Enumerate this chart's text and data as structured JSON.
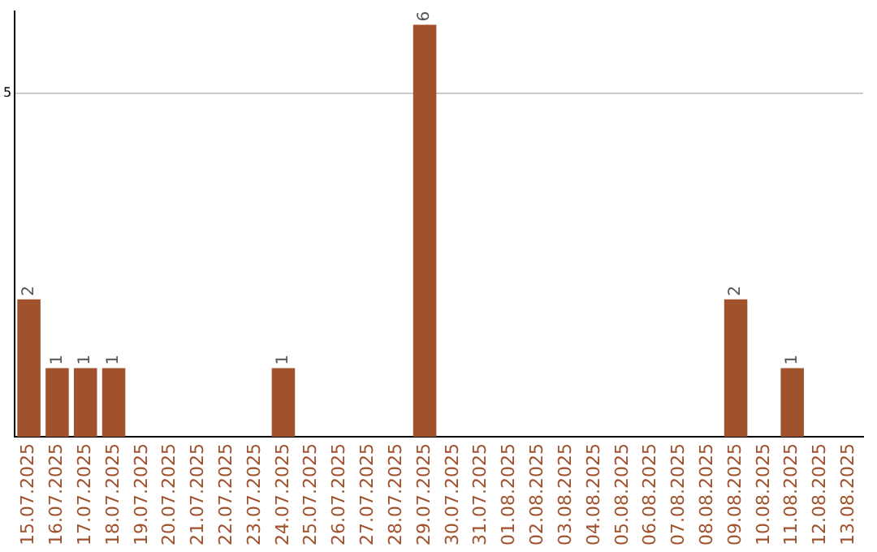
{
  "chart_data": {
    "type": "bar",
    "categories": [
      "15.07.2025",
      "16.07.2025",
      "17.07.2025",
      "18.07.2025",
      "19.07.2025",
      "20.07.2025",
      "21.07.2025",
      "22.07.2025",
      "23.07.2025",
      "24.07.2025",
      "25.07.2025",
      "26.07.2025",
      "27.07.2025",
      "28.07.2025",
      "29.07.2025",
      "30.07.2025",
      "31.07.2025",
      "01.08.2025",
      "02.08.2025",
      "03.08.2025",
      "04.08.2025",
      "05.08.2025",
      "06.08.2025",
      "07.08.2025",
      "08.08.2025",
      "09.08.2025",
      "10.08.2025",
      "11.08.2025",
      "12.08.2025",
      "13.08.2025"
    ],
    "values": [
      2,
      1,
      1,
      1,
      0,
      0,
      0,
      0,
      0,
      1,
      0,
      0,
      0,
      0,
      6,
      0,
      0,
      0,
      0,
      0,
      0,
      0,
      0,
      0,
      0,
      2,
      0,
      1,
      0,
      0
    ],
    "value_labels": [
      "2",
      "1",
      "1",
      "1",
      null,
      null,
      null,
      null,
      null,
      "1",
      null,
      null,
      null,
      null,
      "6",
      null,
      null,
      null,
      null,
      null,
      null,
      null,
      null,
      null,
      null,
      "2",
      null,
      "1",
      null,
      null
    ],
    "color": "#a0522d",
    "ylim": [
      0,
      6.2
    ],
    "yticks": [
      5
    ],
    "grid": "y",
    "legend": false
  }
}
